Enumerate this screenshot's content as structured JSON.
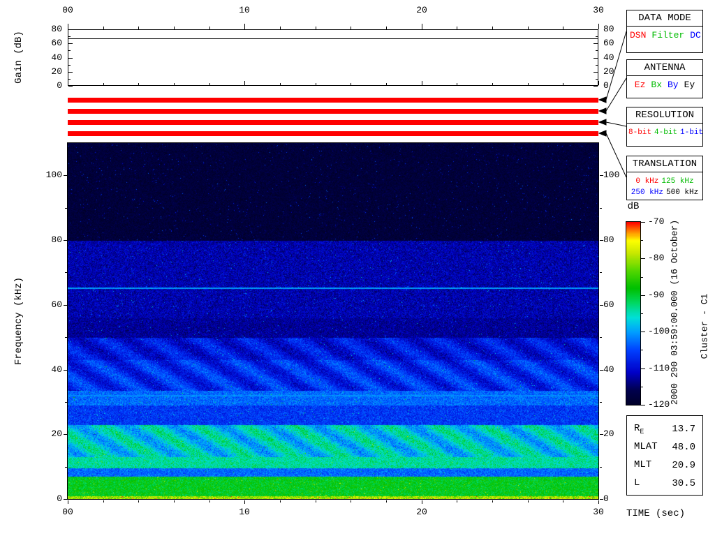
{
  "top_axis": {
    "ticks": [
      "00",
      "10",
      "20",
      "30"
    ]
  },
  "gain_plot": {
    "ylabel": "Gain (dB)",
    "yticks": [
      "0",
      "20",
      "40",
      "60",
      "80"
    ],
    "ylim": [
      0,
      80
    ],
    "line_level_db": 68
  },
  "status_stripes": [
    {
      "name": "data-mode-stripe",
      "value": "DSN",
      "color": "#ff0000"
    },
    {
      "name": "antenna-stripe",
      "value": "Ez",
      "color": "#ff0000"
    },
    {
      "name": "resolution-stripe",
      "value": "8-bit",
      "color": "#ff0000"
    },
    {
      "name": "translation-stripe",
      "value": "0 kHz",
      "color": "#ff0000"
    }
  ],
  "panels": {
    "data_mode": {
      "title": "DATA MODE",
      "options": [
        {
          "label": "DSN",
          "color": "#ff0000"
        },
        {
          "label": "Filter",
          "color": "#00bb00"
        },
        {
          "label": "DC",
          "color": "#0000ff"
        }
      ]
    },
    "antenna": {
      "title": "ANTENNA",
      "options": [
        {
          "label": "Ez",
          "color": "#ff0000"
        },
        {
          "label": "Bx",
          "color": "#00bb00"
        },
        {
          "label": "By",
          "color": "#0000ff"
        },
        {
          "label": "Ey",
          "color": "#000000"
        }
      ]
    },
    "resolution": {
      "title": "RESOLUTION",
      "options": [
        {
          "label": "8-bit",
          "color": "#ff0000"
        },
        {
          "label": "4-bit",
          "color": "#00bb00"
        },
        {
          "label": "1-bit",
          "color": "#0000ff"
        }
      ]
    },
    "translation": {
      "title": "TRANSLATION",
      "options": [
        {
          "label": "0 kHz",
          "color": "#ff0000"
        },
        {
          "label": "125 kHz",
          "color": "#00bb00"
        },
        {
          "label": "250 kHz",
          "color": "#0000ff"
        },
        {
          "label": "500 kHz",
          "color": "#000000"
        }
      ]
    }
  },
  "colorbar": {
    "label": "dB",
    "ticks": [
      "-70",
      "-80",
      "-90",
      "-100",
      "-110",
      "-120"
    ],
    "min_db": -120,
    "max_db": -70
  },
  "side_text": {
    "timestamp": "2000 290 03:59:00.000 (16 October)",
    "spacecraft": "Cluster - C1"
  },
  "params": {
    "rows": [
      {
        "label": "R",
        "sub": "E",
        "value": "13.7"
      },
      {
        "label": "MLAT",
        "sub": "",
        "value": "48.0"
      },
      {
        "label": "MLT",
        "sub": "",
        "value": "20.9"
      },
      {
        "label": "L",
        "sub": "",
        "value": "30.5"
      }
    ]
  },
  "time_axis": {
    "label": "TIME (sec)",
    "ticks": [
      "00",
      "10",
      "20",
      "30"
    ]
  },
  "freq_axis": {
    "label": "Frequency (kHz)",
    "ticks": [
      "0",
      "20",
      "40",
      "60",
      "80",
      "100"
    ],
    "lim_khz": [
      0,
      110
    ]
  },
  "chart_data": [
    {
      "type": "line",
      "name": "receiver-gain",
      "ylabel": "Gain (dB)",
      "ylim": [
        0,
        80
      ],
      "xlim_sec": [
        0,
        30
      ],
      "series": [
        {
          "name": "gain",
          "x_sec": [
            0,
            30
          ],
          "values_db": [
            68,
            68
          ]
        }
      ]
    },
    {
      "type": "heatmap",
      "name": "wbd-spectrogram",
      "title": "Cluster - C1 wideband spectrogram, 2000 290 03:59:00.000 (16 October)",
      "xlabel": "TIME (sec)",
      "ylabel": "Frequency (kHz)",
      "xlim_sec": [
        0,
        30
      ],
      "ylim_khz": [
        0,
        110
      ],
      "xticks": [
        "00",
        "10",
        "20",
        "30"
      ],
      "yticks": [
        0,
        20,
        40,
        60,
        80,
        100
      ],
      "colorbar_db": {
        "label": "dB",
        "min": -120,
        "max": -70,
        "ticks": [
          -70,
          -80,
          -90,
          -100,
          -110,
          -120
        ]
      },
      "narrowband_lines_khz": [
        {
          "f_khz": 65.3,
          "level_db": -100
        },
        {
          "f_khz": 32,
          "level_db": -101
        }
      ],
      "bands": [
        {
          "f0": 0,
          "f1": 1,
          "level_db": -80,
          "speckle_db": 8
        },
        {
          "f0": 1,
          "f1": 7,
          "level_db": -89,
          "speckle_db": 5
        },
        {
          "f0": 7,
          "f1": 9.5,
          "level_db": -103,
          "speckle_db": 5
        },
        {
          "f0": 9.5,
          "f1": 13,
          "level_db": -94,
          "speckle_db": 5
        },
        {
          "f0": 13,
          "f1": 23,
          "level_db": -97,
          "speckle_db": 6,
          "mod_db": 4,
          "mod_period_sec": 2.7
        },
        {
          "f0": 23,
          "f1": 29,
          "level_db": -106,
          "speckle_db": 5
        },
        {
          "f0": 29,
          "f1": 33.5,
          "level_db": -103,
          "speckle_db": 5
        },
        {
          "f0": 33.5,
          "f1": 43,
          "level_db": -107,
          "speckle_db": 5,
          "mod_db": 3,
          "mod_period_sec": 2.7
        },
        {
          "f0": 43,
          "f1": 50,
          "level_db": -109,
          "speckle_db": 5,
          "mod_db": 2.5,
          "mod_period_sec": 2.7
        },
        {
          "f0": 50,
          "f1": 56,
          "level_db": -113,
          "speckle_db": 4
        },
        {
          "f0": 56,
          "f1": 80,
          "level_db": -112,
          "speckle_db": 5
        },
        {
          "f0": 80,
          "f1": 110,
          "level_db": -118,
          "speckle_db": 3
        }
      ],
      "colormap": [
        {
          "t": 0.0,
          "c": "#000026"
        },
        {
          "t": 0.08,
          "c": "#00004e"
        },
        {
          "t": 0.18,
          "c": "#0000c8"
        },
        {
          "t": 0.3,
          "c": "#0040ff"
        },
        {
          "t": 0.4,
          "c": "#00a0ff"
        },
        {
          "t": 0.48,
          "c": "#00e0d8"
        },
        {
          "t": 0.56,
          "c": "#00d860"
        },
        {
          "t": 0.64,
          "c": "#00c000"
        },
        {
          "t": 0.74,
          "c": "#58d800"
        },
        {
          "t": 0.83,
          "c": "#c8e800"
        },
        {
          "t": 0.9,
          "c": "#ffff00"
        },
        {
          "t": 0.95,
          "c": "#ff8000"
        },
        {
          "t": 1.0,
          "c": "#ff0000"
        }
      ]
    }
  ]
}
